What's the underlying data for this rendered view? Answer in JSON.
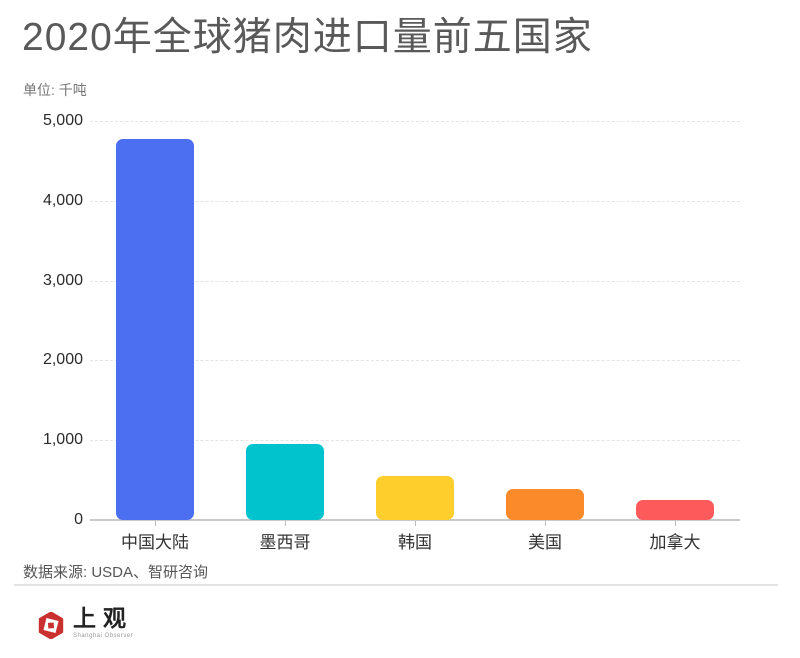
{
  "header": {
    "title": "2020年全球猪肉进口量前五国家",
    "subtitle": "单位: 千吨"
  },
  "footer": {
    "source": "数据来源: USDA、智研咨询",
    "logo_cn": "上观",
    "logo_en": "Shanghai Observer"
  },
  "colors": {
    "title_text": "#595959",
    "subtitle_text": "#757575",
    "gridline": "#e4e4e4",
    "axis_line": "#c9c9c9",
    "logo_red": "#c9302f"
  },
  "chart_data": {
    "type": "bar",
    "title": "2020年全球猪肉进口量前五国家",
    "xlabel": "",
    "ylabel": "单位: 千吨",
    "categories": [
      "中国大陆",
      "墨西哥",
      "韩国",
      "美国",
      "加拿大"
    ],
    "values": [
      4780,
      950,
      550,
      390,
      250
    ],
    "bar_colors": [
      "#4c6ef0",
      "#00c3ce",
      "#fecf2c",
      "#fb8a2b",
      "#fc5a5b"
    ],
    "ylim": [
      0,
      5000
    ],
    "yticks": [
      0,
      1000,
      2000,
      3000,
      4000,
      5000
    ],
    "ytick_labels": [
      "0",
      "1,000",
      "2,000",
      "3,000",
      "4,000",
      "5,000"
    ],
    "grid": "horizontal-dashed",
    "legend": "none"
  }
}
